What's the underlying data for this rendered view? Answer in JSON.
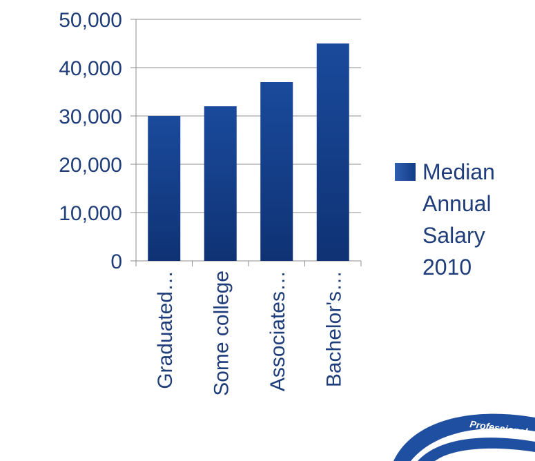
{
  "chart_data": {
    "type": "bar",
    "categories": [
      "Graduated…",
      "Some college",
      "Associates…",
      "Bachelor's…"
    ],
    "series": [
      {
        "name": "Median Annual Salary 2010",
        "values": [
          30000,
          32000,
          37000,
          45000
        ],
        "color": "#1a4a9c"
      }
    ],
    "y_ticks": [
      "0",
      "10,000",
      "20,000",
      "30,000",
      "40,000",
      "50,000"
    ],
    "ylim": [
      0,
      50000
    ],
    "grid": true,
    "legend_position": "right",
    "title": "",
    "xlabel": "",
    "ylabel": ""
  },
  "legend": {
    "lines": [
      "Median",
      "Annual",
      "Salary",
      "2010"
    ]
  },
  "logo": {
    "text": "Professional",
    "color": "#1f4fa0"
  }
}
